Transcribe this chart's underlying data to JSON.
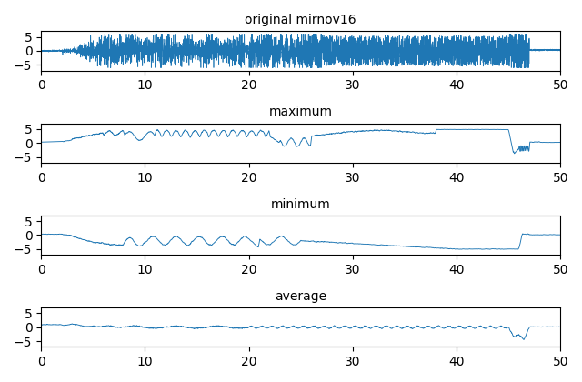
{
  "title1": "original mirnov16",
  "title2": "maximum",
  "title3": "minimum",
  "title4": "average",
  "xlim": [
    0,
    50
  ],
  "line_color": "#1f77b4",
  "line_width": 0.5,
  "xticks": [
    0,
    10,
    20,
    30,
    40,
    50
  ],
  "yticks": [
    -5,
    0,
    5
  ],
  "figsize": [
    6.4,
    4.2
  ],
  "dpi": 100,
  "n_points": 5000,
  "seed": 42
}
